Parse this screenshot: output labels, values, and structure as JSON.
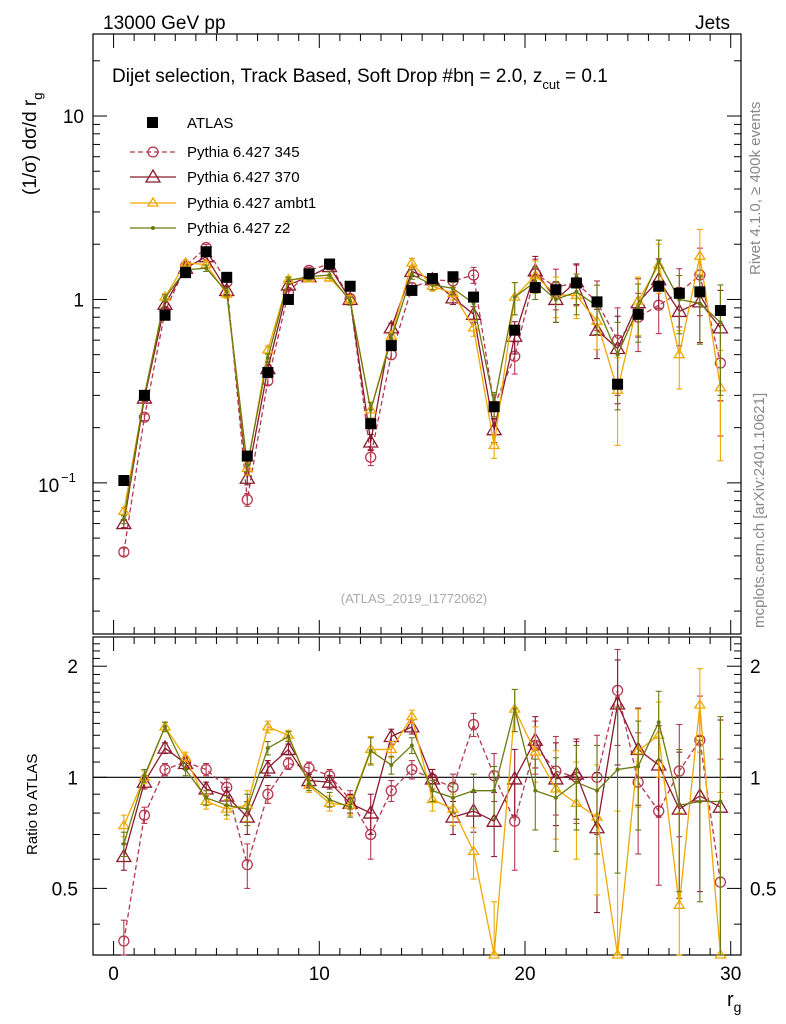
{
  "header": {
    "left": "13000 GeV pp",
    "right": "Jets"
  },
  "side_labels": {
    "rivet": "Rivet 4.1.0, ≥ 400k events",
    "mcplots": "mcplots.cern.ch [arXiv:2401.10621]"
  },
  "chart_data": {
    "type": "scatter",
    "title": "Dijet selection, Track Based, Soft Drop #b",
    "title_tail": "η = 2.0, z",
    "title_sub": "cut",
    "title_end": " = 0.1",
    "watermark": "(ATLAS_2019_I1772062)",
    "ylabel_main": "(1/σ) dσ/d r",
    "ylabel_main_sub": "g",
    "ylabel_ratio": "Ratio to ATLAS",
    "xlabel": "r",
    "xlabel_sub": "g",
    "xlim": [
      -1,
      30.5
    ],
    "ylim_main": [
      0.015,
      28
    ],
    "ylim_ratio": [
      0.33,
      2.4
    ],
    "ylog": true,
    "x_ticks": [
      "0",
      "10",
      "20",
      "30"
    ],
    "y_ticks_main": [
      "10",
      "1",
      "10"
    ],
    "y_tick_main_exp": "−1",
    "y_ticks_ratio": [
      "2",
      "1",
      "0.5"
    ],
    "x": [
      0.5,
      1.5,
      2.5,
      3.5,
      4.5,
      5.5,
      6.5,
      7.5,
      8.5,
      9.5,
      10.5,
      11.5,
      12.5,
      13.5,
      14.5,
      15.5,
      16.5,
      17.5,
      18.5,
      19.5,
      20.5,
      21.5,
      22.5,
      23.5,
      24.5,
      25.5,
      26.5,
      27.5,
      28.5,
      29.5
    ],
    "reference": {
      "name": "ATLAS",
      "values": [
        0.103,
        0.3,
        0.82,
        1.4,
        1.82,
        1.32,
        0.14,
        0.4,
        1.0,
        1.38,
        1.56,
        1.18,
        0.21,
        0.56,
        1.12,
        1.3,
        1.33,
        1.03,
        0.26,
        0.68,
        1.16,
        1.13,
        1.23,
        0.97,
        0.345,
        0.83,
        1.18,
        1.08,
        1.1,
        0.87
      ]
    },
    "series": [
      {
        "name": "Pythia 6.427 345",
        "color": "#b5384f",
        "marker": "circle",
        "dash": "5,3",
        "values": [
          0.042,
          0.228,
          0.86,
          1.52,
          1.92,
          1.24,
          0.081,
          0.36,
          1.09,
          1.44,
          1.56,
          1.01,
          0.138,
          0.5,
          1.16,
          1.28,
          1.26,
          1.36,
          0.262,
          0.49,
          1.38,
          1.17,
          1.23,
          0.97,
          0.6,
          0.8,
          0.93,
          1.09,
          1.36,
          0.45
        ],
        "ratio": [
          0.36,
          0.79,
          1.05,
          1.1,
          1.05,
          0.94,
          0.58,
          0.9,
          1.09,
          1.06,
          1.01,
          0.87,
          0.7,
          0.92,
          1.05,
          0.99,
          0.94,
          1.39,
          1.01,
          0.76,
          1.22,
          1.04,
          1.0,
          1.0,
          1.72,
          0.97,
          0.81,
          1.04,
          1.26,
          0.52
        ],
        "err": [
          0.05,
          0.04,
          0.04,
          0.04,
          0.04,
          0.05,
          0.08,
          0.05,
          0.04,
          0.04,
          0.04,
          0.05,
          0.1,
          0.06,
          0.06,
          0.06,
          0.08,
          0.1,
          0.15,
          0.2,
          0.2,
          0.25,
          0.25,
          0.3,
          0.5,
          0.35,
          0.3,
          0.35,
          0.4,
          0.6
        ]
      },
      {
        "name": "Pythia 6.427 370",
        "color": "#8b1a2e",
        "marker": "triangle",
        "dash": "",
        "values": [
          0.06,
          0.29,
          0.94,
          1.48,
          1.71,
          1.12,
          0.106,
          0.42,
          1.2,
          1.33,
          1.51,
          1.0,
          0.167,
          0.7,
          1.42,
          1.28,
          1.02,
          0.83,
          0.195,
          0.63,
          1.43,
          1.0,
          1.25,
          0.68,
          0.54,
          0.96,
          1.28,
          0.86,
          0.97,
          0.7
        ],
        "ratio": [
          0.61,
          0.97,
          1.2,
          1.09,
          0.93,
          0.89,
          0.78,
          1.06,
          1.19,
          0.98,
          0.97,
          0.85,
          0.8,
          1.29,
          1.37,
          0.99,
          0.78,
          0.81,
          0.76,
          0.99,
          1.26,
          0.99,
          1.02,
          0.73,
          1.58,
          1.19,
          1.08,
          0.82,
          0.89,
          0.83
        ],
        "err": [
          0.05,
          0.04,
          0.04,
          0.04,
          0.04,
          0.05,
          0.08,
          0.05,
          0.04,
          0.04,
          0.04,
          0.05,
          0.1,
          0.06,
          0.06,
          0.06,
          0.08,
          0.1,
          0.15,
          0.2,
          0.2,
          0.25,
          0.25,
          0.3,
          0.5,
          0.35,
          0.3,
          0.35,
          0.4,
          0.6
        ]
      },
      {
        "name": "Pythia 6.427 ambt1",
        "color": "#f0a800",
        "marker": "triangle-small",
        "dash": "",
        "values": [
          0.07,
          0.3,
          1.03,
          1.58,
          1.55,
          1.07,
          0.12,
          0.53,
          1.28,
          1.3,
          1.31,
          1.0,
          0.25,
          0.63,
          1.58,
          1.18,
          1.08,
          0.7,
          0.16,
          1.03,
          1.35,
          1.06,
          1.05,
          0.76,
          0.32,
          0.98,
          1.54,
          0.5,
          1.72,
          0.33
        ],
        "ratio": [
          0.74,
          1.0,
          1.37,
          1.13,
          0.86,
          0.82,
          0.84,
          1.37,
          1.3,
          0.95,
          0.85,
          0.84,
          1.19,
          1.19,
          1.46,
          0.87,
          0.82,
          0.63,
          0.31,
          1.53,
          1.17,
          0.93,
          0.85,
          0.78,
          0.31,
          1.18,
          1.3,
          0.45,
          1.57,
          0.31
        ],
        "err": [
          0.05,
          0.04,
          0.04,
          0.04,
          0.04,
          0.05,
          0.08,
          0.05,
          0.04,
          0.04,
          0.04,
          0.05,
          0.1,
          0.06,
          0.06,
          0.06,
          0.08,
          0.1,
          0.15,
          0.2,
          0.2,
          0.25,
          0.25,
          0.3,
          0.5,
          0.35,
          0.3,
          0.35,
          0.4,
          0.6
        ]
      },
      {
        "name": "Pythia 6.427 z2",
        "color": "#6b7a10",
        "marker": "dot",
        "dash": "",
        "values": [
          0.063,
          0.3,
          1.02,
          1.45,
          1.48,
          1.1,
          0.125,
          0.48,
          1.27,
          1.33,
          1.36,
          0.98,
          0.25,
          0.61,
          1.37,
          1.2,
          1.15,
          0.95,
          0.27,
          1.03,
          1.25,
          1.0,
          1.1,
          0.92,
          0.5,
          0.9,
          1.62,
          1.0,
          0.95,
          0.75
        ],
        "ratio": [
          0.66,
          1.01,
          1.37,
          1.05,
          0.88,
          0.84,
          0.82,
          1.2,
          1.29,
          0.96,
          0.87,
          0.83,
          1.18,
          1.08,
          1.22,
          0.92,
          0.88,
          0.92,
          0.92,
          1.53,
          0.92,
          0.88,
          0.97,
          0.92,
          1.05,
          1.07,
          1.41,
          0.84,
          0.86,
          0.86
        ],
        "err": [
          0.05,
          0.04,
          0.04,
          0.04,
          0.04,
          0.05,
          0.08,
          0.05,
          0.04,
          0.04,
          0.04,
          0.05,
          0.1,
          0.06,
          0.06,
          0.06,
          0.08,
          0.1,
          0.15,
          0.2,
          0.2,
          0.25,
          0.25,
          0.3,
          0.5,
          0.35,
          0.3,
          0.35,
          0.4,
          0.6
        ]
      }
    ]
  }
}
